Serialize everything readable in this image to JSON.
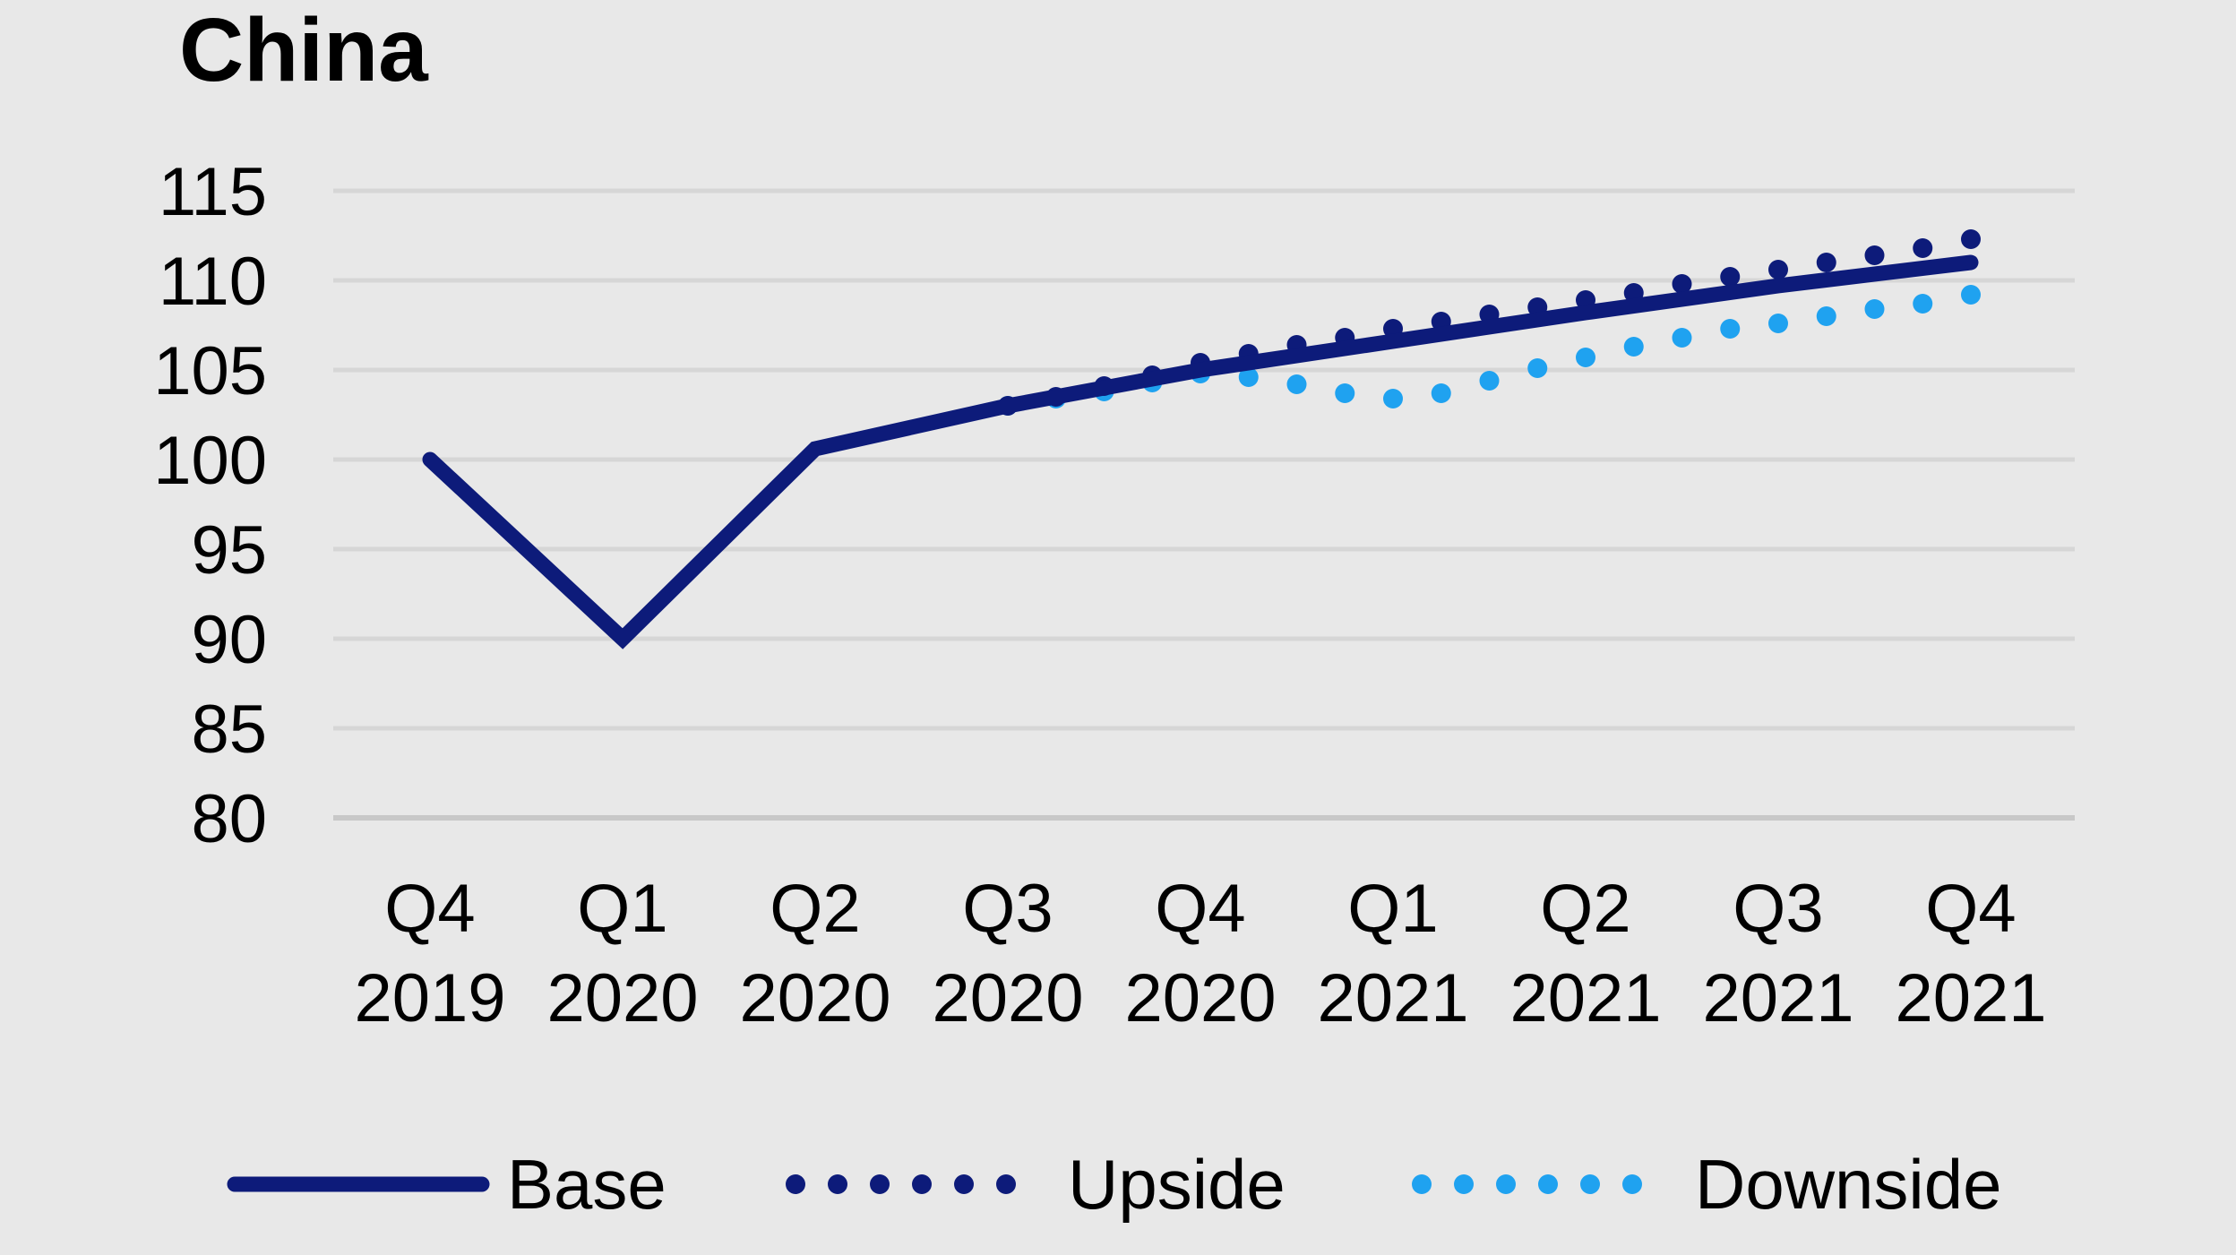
{
  "chart_data": {
    "type": "line",
    "title": "China",
    "xlabel": "",
    "ylabel": "",
    "ylim": [
      80,
      115
    ],
    "yticks": [
      115,
      110,
      105,
      100,
      95,
      90,
      85,
      80
    ],
    "categories": [
      [
        "Q4",
        "2019"
      ],
      [
        "Q1",
        "2020"
      ],
      [
        "Q2",
        "2020"
      ],
      [
        "Q3",
        "2020"
      ],
      [
        "Q4",
        "2020"
      ],
      [
        "Q1",
        "2021"
      ],
      [
        "Q2",
        "2021"
      ],
      [
        "Q3",
        "2021"
      ],
      [
        "Q4",
        "2021"
      ]
    ],
    "grid": true,
    "legend_position": "bottom",
    "series": [
      {
        "name": "Base",
        "style": "solid",
        "color": "#0d1b7a",
        "x": [
          0,
          1,
          2,
          3,
          4,
          5,
          6,
          7,
          8
        ],
        "values": [
          100,
          90,
          100.6,
          103,
          105,
          106.6,
          108.2,
          109.7,
          111
        ]
      },
      {
        "name": "Upside",
        "style": "dotted",
        "color": "#0d1b7a",
        "x": [
          3,
          3.25,
          3.5,
          3.75,
          4,
          4.25,
          4.5,
          4.75,
          5,
          5.25,
          5.5,
          5.75,
          6,
          6.25,
          6.5,
          6.75,
          7,
          7.25,
          7.5,
          7.75,
          8
        ],
        "values": [
          103,
          103.5,
          104.1,
          104.7,
          105.4,
          105.9,
          106.4,
          106.8,
          107.3,
          107.7,
          108.1,
          108.5,
          108.9,
          109.3,
          109.8,
          110.2,
          110.6,
          111.0,
          111.4,
          111.8,
          112.3
        ]
      },
      {
        "name": "Downside",
        "style": "dotted",
        "color": "#1fa2f0",
        "x": [
          3,
          3.25,
          3.5,
          3.75,
          4,
          4.25,
          4.5,
          4.75,
          5,
          5.25,
          5.5,
          5.75,
          6,
          6.25,
          6.5,
          6.75,
          7,
          7.25,
          7.5,
          7.75,
          8
        ],
        "values": [
          103,
          103.4,
          103.8,
          104.3,
          104.8,
          104.6,
          104.2,
          103.7,
          103.4,
          103.7,
          104.4,
          105.1,
          105.7,
          106.3,
          106.8,
          107.3,
          107.6,
          108.0,
          108.4,
          108.7,
          109.2
        ]
      }
    ]
  }
}
